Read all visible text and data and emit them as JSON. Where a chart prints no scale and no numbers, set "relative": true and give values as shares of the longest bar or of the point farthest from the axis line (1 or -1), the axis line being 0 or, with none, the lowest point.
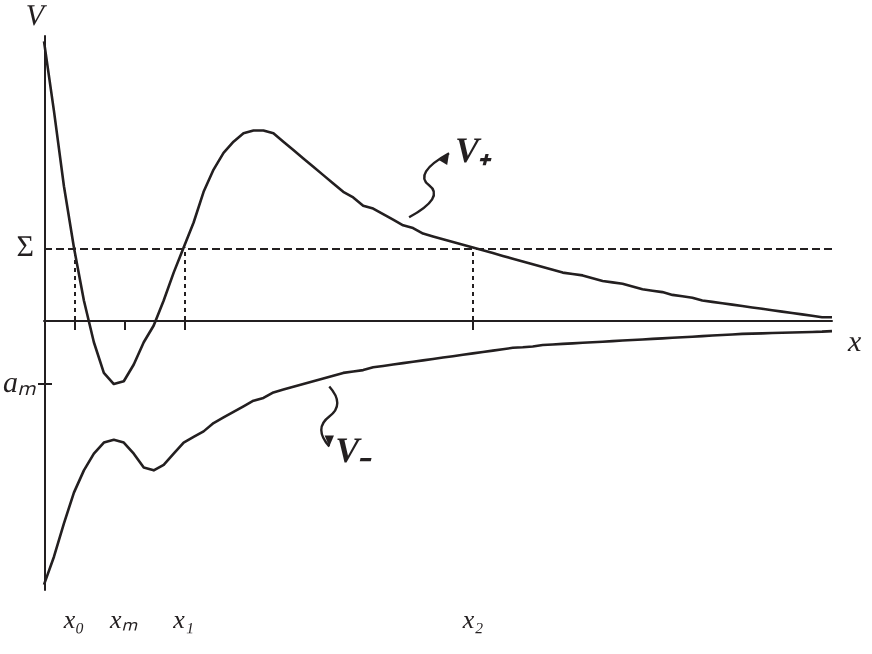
{
  "chart_data": {
    "type": "line",
    "relative": true,
    "xlabel": "x",
    "ylabel": "V",
    "marker": "none",
    "line_style": "solid",
    "categories": [
      null,
      null,
      null,
      "x₀",
      null,
      null,
      null,
      null,
      "xₘ",
      null,
      null,
      null,
      null,
      null,
      "x₁",
      null,
      null,
      null,
      null,
      null,
      null,
      null,
      null,
      null,
      null,
      null,
      null,
      null,
      null,
      null,
      null,
      null,
      null,
      null,
      null,
      null,
      null,
      null,
      null,
      null,
      null,
      null,
      null,
      "x₂",
      null,
      null,
      null,
      null,
      null,
      null,
      null,
      null,
      null,
      null,
      null,
      null,
      null,
      null,
      null,
      null,
      null,
      null,
      null,
      null,
      null,
      null,
      null,
      null,
      null,
      null,
      null,
      null,
      null,
      null,
      null,
      null,
      null,
      null,
      null,
      null
    ],
    "series": [
      {
        "name": "V₊",
        "color": "#231f20",
        "values": [
          1.0,
          0.75,
          0.48,
          0.26,
          0.07,
          -0.08,
          -0.19,
          -0.23,
          -0.22,
          -0.16,
          -0.08,
          -0.02,
          0.07,
          0.17,
          0.26,
          0.35,
          0.46,
          0.54,
          0.6,
          0.64,
          0.67,
          0.68,
          0.68,
          0.67,
          0.64,
          0.61,
          0.58,
          0.55,
          0.52,
          0.49,
          0.46,
          0.44,
          0.41,
          0.4,
          0.38,
          0.36,
          0.34,
          0.33,
          0.31,
          0.3,
          0.29,
          0.28,
          0.27,
          0.26,
          0.25,
          0.24,
          0.23,
          0.22,
          0.21,
          0.2,
          0.19,
          0.18,
          0.17,
          0.165,
          0.16,
          0.15,
          0.14,
          0.135,
          0.13,
          0.12,
          0.11,
          0.105,
          0.1,
          0.09,
          0.085,
          0.08,
          0.07,
          0.065,
          0.06,
          0.055,
          0.05,
          0.045,
          0.04,
          0.035,
          0.03,
          0.025,
          0.02,
          0.015,
          0.01,
          0.01
        ]
      },
      {
        "name": "V₋",
        "color": "#231f20",
        "values": [
          -0.95,
          -0.85,
          -0.73,
          -0.62,
          -0.54,
          -0.48,
          -0.44,
          -0.43,
          -0.44,
          -0.48,
          -0.53,
          -0.54,
          -0.52,
          -0.48,
          -0.44,
          -0.42,
          -0.4,
          -0.37,
          -0.35,
          -0.33,
          -0.31,
          -0.29,
          -0.28,
          -0.26,
          -0.25,
          -0.24,
          -0.23,
          -0.22,
          -0.21,
          -0.2,
          -0.19,
          -0.185,
          -0.18,
          -0.17,
          -0.165,
          -0.16,
          -0.155,
          -0.15,
          -0.145,
          -0.14,
          -0.135,
          -0.13,
          -0.125,
          -0.12,
          -0.115,
          -0.11,
          -0.105,
          -0.1,
          -0.098,
          -0.095,
          -0.09,
          -0.088,
          -0.086,
          -0.084,
          -0.082,
          -0.08,
          -0.078,
          -0.076,
          -0.074,
          -0.072,
          -0.07,
          -0.068,
          -0.066,
          -0.064,
          -0.062,
          -0.06,
          -0.058,
          -0.056,
          -0.054,
          -0.052,
          -0.05,
          -0.049,
          -0.048,
          -0.047,
          -0.046,
          -0.045,
          -0.044,
          -0.043,
          -0.042,
          -0.04
        ]
      }
    ],
    "ref_lines": [
      {
        "axis": "y",
        "value": 0.26,
        "label": "Σ",
        "color": "#231f20",
        "line_style": "dashed"
      },
      {
        "axis": "x",
        "value": "x₀",
        "color": "#231f20",
        "line_style": "dotted"
      },
      {
        "axis": "x",
        "value": "x₁",
        "color": "#231f20",
        "line_style": "dotted"
      },
      {
        "axis": "x",
        "value": "x₂",
        "color": "#231f20",
        "line_style": "dotted"
      }
    ],
    "legend": "right",
    "annotations": [
      "aₘ"
    ]
  }
}
